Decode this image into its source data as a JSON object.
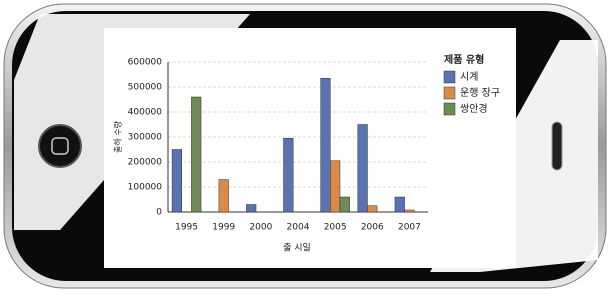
{
  "chart_data": {
    "type": "bar",
    "title": "",
    "x_label": "출 시일",
    "y_label": "출하 수량",
    "legend_title": "제품 유형",
    "legend_position": "right",
    "categories": [
      "1995",
      "1999",
      "2000",
      "2004",
      "2005",
      "2006",
      "2007"
    ],
    "series": [
      {
        "name": "시계",
        "color": "#5b72b0",
        "values": [
          250000,
          null,
          30000,
          295000,
          535000,
          350000,
          60000
        ]
      },
      {
        "name": "운행 장구",
        "color": "#d98c4a",
        "values": [
          null,
          130000,
          null,
          null,
          205000,
          25000,
          8000
        ]
      },
      {
        "name": "쌍안경",
        "color": "#6e8a55",
        "values": [
          460000,
          null,
          null,
          null,
          60000,
          null,
          null
        ]
      }
    ],
    "ylim": [
      0,
      600000
    ],
    "yticks": [
      0,
      100000,
      200000,
      300000,
      400000,
      500000,
      600000
    ],
    "grid": true
  }
}
